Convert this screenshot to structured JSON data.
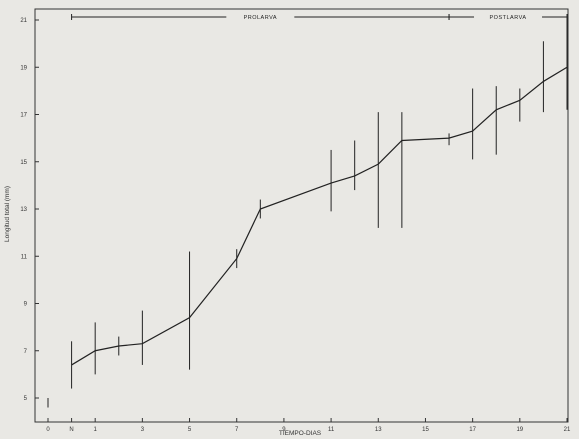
{
  "chart_data": {
    "type": "line",
    "xlabel": "TIEMPO-DIAS",
    "ylabel": "Longitud total (mm)",
    "xlim": [
      0,
      21
    ],
    "ylim": [
      4.5,
      21.2
    ],
    "x_tick_labels": [
      {
        "x": 0,
        "label": "0"
      },
      {
        "x": 1,
        "label": "N"
      },
      {
        "x": 2,
        "label": "1"
      },
      {
        "x": 4,
        "label": "3"
      },
      {
        "x": 6,
        "label": "5"
      },
      {
        "x": 8,
        "label": "7"
      },
      {
        "x": 10,
        "label": "9"
      },
      {
        "x": 12,
        "label": "11"
      },
      {
        "x": 14,
        "label": "13"
      },
      {
        "x": 16,
        "label": "15"
      },
      {
        "x": 18,
        "label": "17"
      },
      {
        "x": 20,
        "label": "19"
      },
      {
        "x": 22,
        "label": "21"
      }
    ],
    "y_ticks": [
      5,
      7,
      9,
      11,
      13,
      15,
      17,
      19,
      21
    ],
    "stages": [
      {
        "label": "PROLARVA",
        "x_start": 1,
        "x_end": 17
      },
      {
        "label": "POSTLARVA",
        "x_start": 17,
        "x_end": 22
      }
    ],
    "series": [
      {
        "points": [
          {
            "x": 0,
            "y": 4.8,
            "low": 4.6,
            "high": 5.0
          },
          {
            "x": 1,
            "y": 6.4,
            "low": 5.4,
            "high": 7.4
          },
          {
            "x": 2,
            "y": 7.0,
            "low": 6.0,
            "high": 8.2
          },
          {
            "x": 3,
            "y": 7.2,
            "low": 6.8,
            "high": 7.6
          },
          {
            "x": 4,
            "y": 7.3,
            "low": 6.4,
            "high": 8.7
          },
          {
            "x": 6,
            "y": 8.4,
            "low": 6.2,
            "high": 11.2
          },
          {
            "x": 8,
            "y": 10.9,
            "low": 10.5,
            "high": 11.3
          },
          {
            "x": 9,
            "y": 13.0,
            "low": 12.6,
            "high": 13.4
          },
          {
            "x": 12,
            "y": 14.1,
            "low": 12.9,
            "high": 15.5
          },
          {
            "x": 13,
            "y": 14.4,
            "low": 13.8,
            "high": 15.9
          },
          {
            "x": 14,
            "y": 14.9,
            "low": 12.2,
            "high": 17.1
          },
          {
            "x": 15,
            "y": 15.9,
            "low": 12.2,
            "high": 17.1
          },
          {
            "x": 17,
            "y": 16.0,
            "low": 15.7,
            "high": 16.2
          },
          {
            "x": 18,
            "y": 16.3,
            "low": 15.1,
            "high": 18.1
          },
          {
            "x": 19,
            "y": 17.2,
            "low": 15.3,
            "high": 18.2
          },
          {
            "x": 20,
            "y": 17.6,
            "low": 16.7,
            "high": 18.1
          },
          {
            "x": 21,
            "y": 18.4,
            "low": 17.1,
            "high": 20.1
          },
          {
            "x": 22,
            "y": 19.0,
            "low": 17.2,
            "high": 21.0
          }
        ]
      }
    ]
  }
}
